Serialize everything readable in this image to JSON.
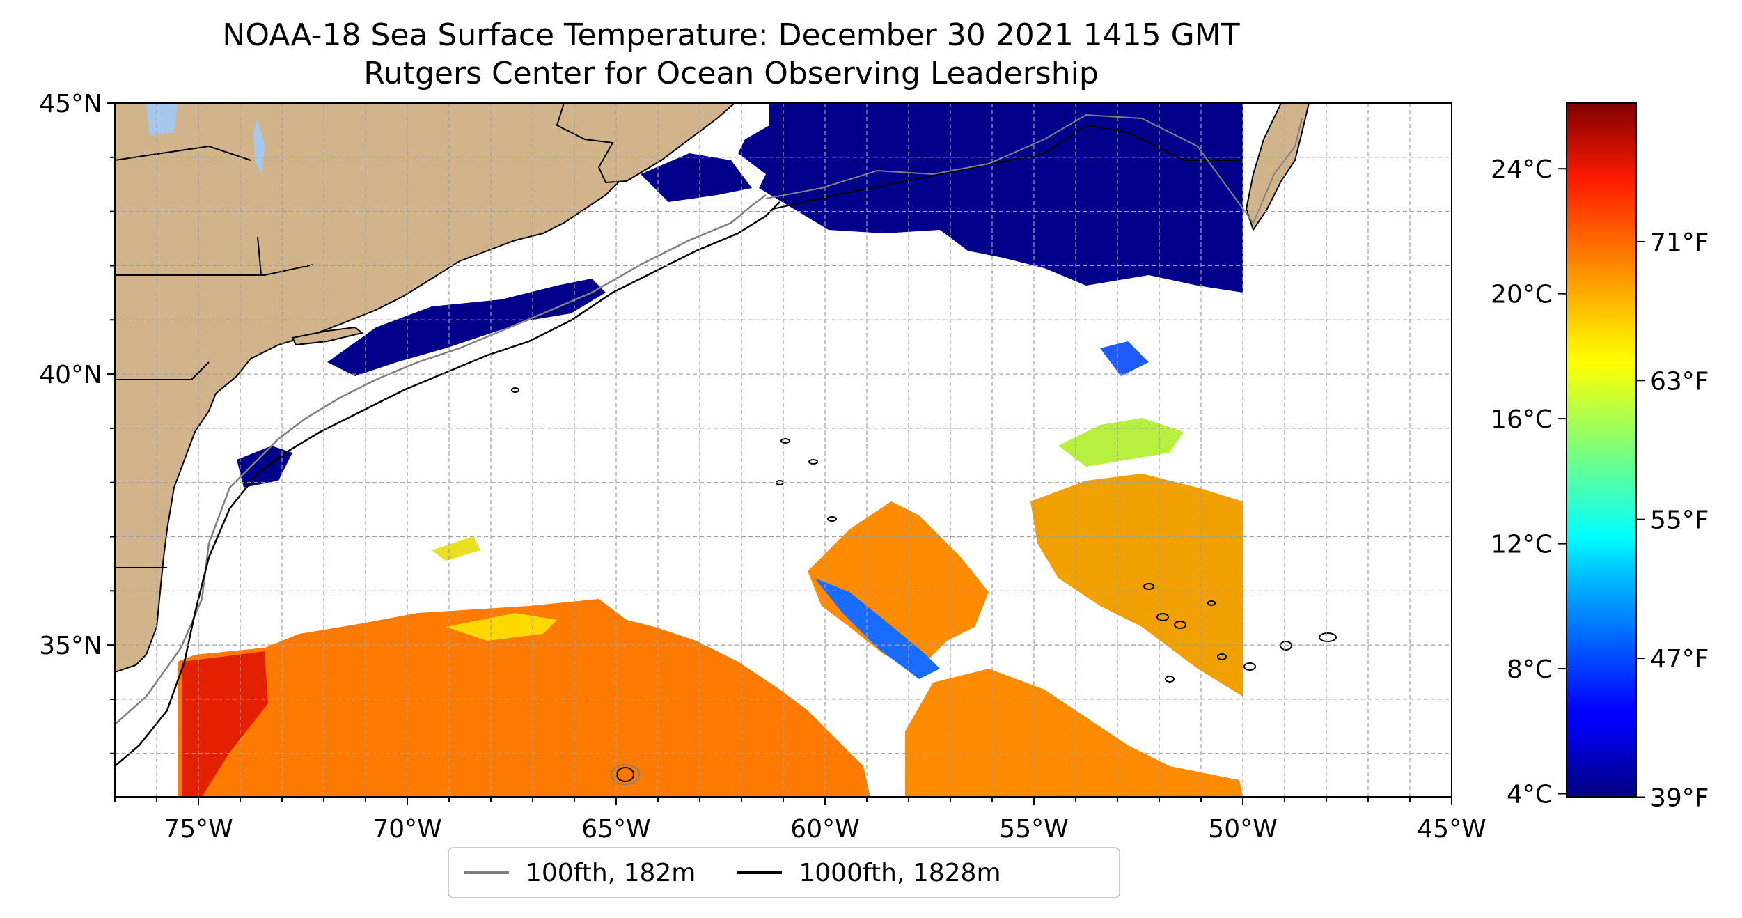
{
  "title": {
    "line1": "NOAA-18 Sea Surface Temperature: December 30 2021 1415 GMT",
    "line2": "Rutgers Center for Ocean Observing Leadership"
  },
  "map": {
    "lon_range": [
      -77,
      -45
    ],
    "lat_range": [
      32.2,
      45
    ],
    "lon_ticks": [
      {
        "value": -75,
        "label": "75°W"
      },
      {
        "value": -70,
        "label": "70°W"
      },
      {
        "value": -65,
        "label": "65°W"
      },
      {
        "value": -60,
        "label": "60°W"
      },
      {
        "value": -55,
        "label": "55°W"
      },
      {
        "value": -50,
        "label": "50°W"
      },
      {
        "value": -45,
        "label": "45°W"
      }
    ],
    "lat_ticks": [
      {
        "value": 35,
        "label": "35°N"
      },
      {
        "value": 40,
        "label": "40°N"
      },
      {
        "value": 45,
        "label": "45°N"
      }
    ],
    "grid": true,
    "colors": {
      "land": "#d2b48c",
      "lakes": "#a5c8ec",
      "ocean_no_data": "#ffffff",
      "isobath_100": "#808080",
      "isobath_1000": "#000000"
    }
  },
  "colorbar": {
    "colormap": "jet",
    "range_c": [
      3.9,
      26.1
    ],
    "celsius_ticks": [
      {
        "value": 4,
        "label": "4°C"
      },
      {
        "value": 8,
        "label": "8°C"
      },
      {
        "value": 12,
        "label": "12°C"
      },
      {
        "value": 16,
        "label": "16°C"
      },
      {
        "value": 20,
        "label": "20°C"
      },
      {
        "value": 24,
        "label": "24°C"
      }
    ],
    "fahrenheit_ticks": [
      {
        "value": 39,
        "label": "39°F"
      },
      {
        "value": 47,
        "label": "47°F"
      },
      {
        "value": 55,
        "label": "55°F"
      },
      {
        "value": 63,
        "label": "63°F"
      },
      {
        "value": 71,
        "label": "71°F"
      }
    ]
  },
  "legend": {
    "placement": "bottom-center",
    "items": [
      {
        "label": "100fth, 182m",
        "color": "#808080"
      },
      {
        "label": "1000fth, 1828m",
        "color": "#000000"
      }
    ]
  }
}
